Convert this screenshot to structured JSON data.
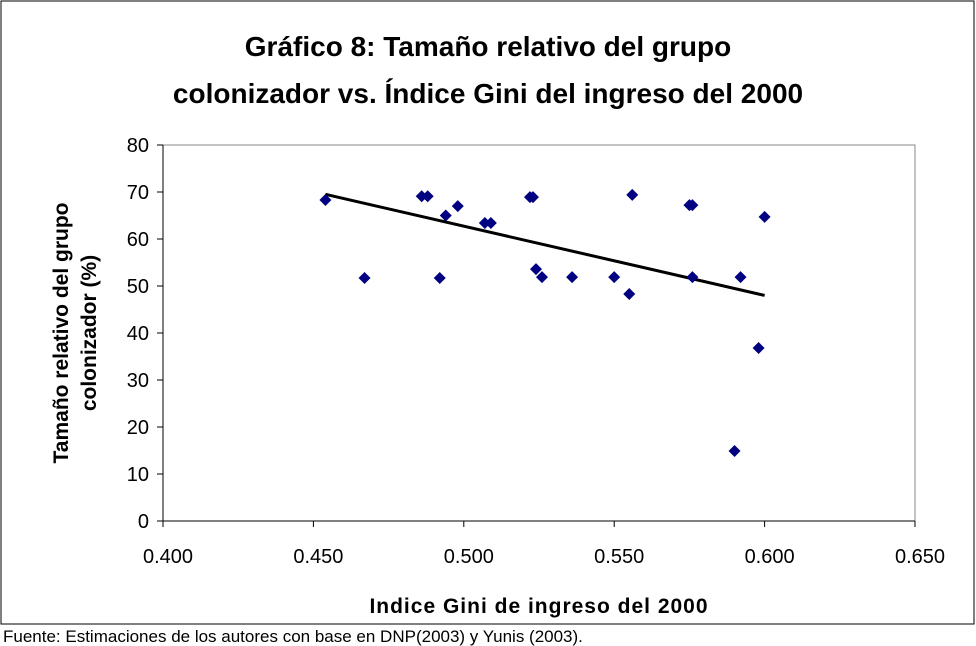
{
  "chart_data": {
    "type": "scatter",
    "title": [
      "Gráfico 8: Tamaño relativo del grupo",
      "colonizador vs. Índice Gini del ingreso del 2000"
    ],
    "x_label": "Indice Gini de ingreso del 2000",
    "y_label": [
      "Tamaño relativo del grupo",
      "colonizador (%)"
    ],
    "source": "Fuente: Estimaciones de los autores con base en DNP(2003) y Yunis (2003).",
    "color": "#000080",
    "x": [
      0.454,
      0.467,
      0.486,
      0.488,
      0.492,
      0.494,
      0.498,
      0.507,
      0.509,
      0.522,
      0.523,
      0.524,
      0.526,
      0.536,
      0.55,
      0.555,
      0.556,
      0.575,
      0.576,
      0.576,
      0.59,
      0.592,
      0.598,
      0.6
    ],
    "values": [
      68.3,
      51.7,
      69.1,
      69.1,
      51.7,
      65,
      67,
      63.4,
      63.4,
      68.9,
      68.9,
      53.6,
      51.9,
      51.9,
      51.9,
      48.3,
      69.4,
      67.2,
      67.2,
      51.9,
      14.9,
      51.9,
      36.8,
      64.7
    ],
    "trendline": {
      "x": [
        0.454,
        0.6
      ],
      "values": [
        69.5,
        48
      ],
      "color": "#000000"
    },
    "xlim": [
      0.4,
      0.65
    ],
    "xticks": [
      {
        "value": 0.4,
        "label": "0.400"
      },
      {
        "value": 0.45,
        "label": "0.450"
      },
      {
        "value": 0.5,
        "label": "0.500"
      },
      {
        "value": 0.55,
        "label": "0.550"
      },
      {
        "value": 0.6,
        "label": "0.600"
      },
      {
        "value": 0.65,
        "label": "0.650"
      }
    ],
    "ylim": [
      0,
      80
    ],
    "yticks": [
      0,
      10,
      20,
      30,
      40,
      50,
      60,
      70,
      80
    ],
    "grid": false
  }
}
